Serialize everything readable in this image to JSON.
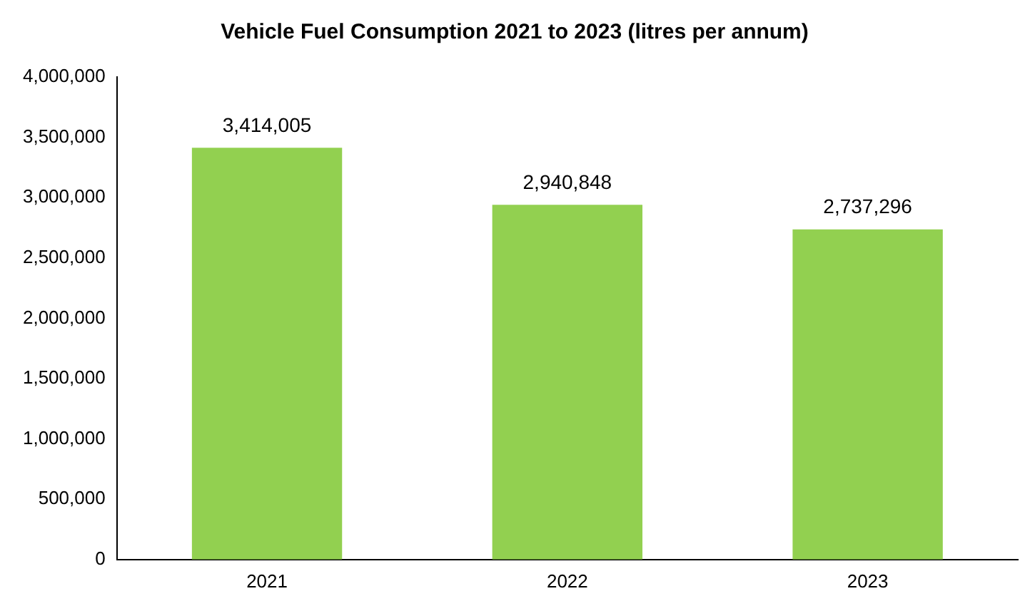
{
  "chart_data": {
    "type": "bar",
    "title": "Vehicle Fuel Consumption 2021 to 2023 (litres per annum)",
    "categories": [
      "2021",
      "2022",
      "2023"
    ],
    "values": [
      3414005,
      2940848,
      2737296
    ],
    "value_labels": [
      "3,414,005",
      "2,940,848",
      "2,737,296"
    ],
    "color": "#92d050",
    "ylim": [
      0,
      4000000
    ],
    "yticks": [
      {
        "value": 0,
        "label": "0"
      },
      {
        "value": 500000,
        "label": "500,000"
      },
      {
        "value": 1000000,
        "label": "1,000,000"
      },
      {
        "value": 1500000,
        "label": "1,500,000"
      },
      {
        "value": 2000000,
        "label": "2,000,000"
      },
      {
        "value": 2500000,
        "label": "2,500,000"
      },
      {
        "value": 3000000,
        "label": "3,000,000"
      },
      {
        "value": 3500000,
        "label": "3,500,000"
      },
      {
        "value": 4000000,
        "label": "4,000,000"
      }
    ],
    "grid": false,
    "legend": false
  }
}
